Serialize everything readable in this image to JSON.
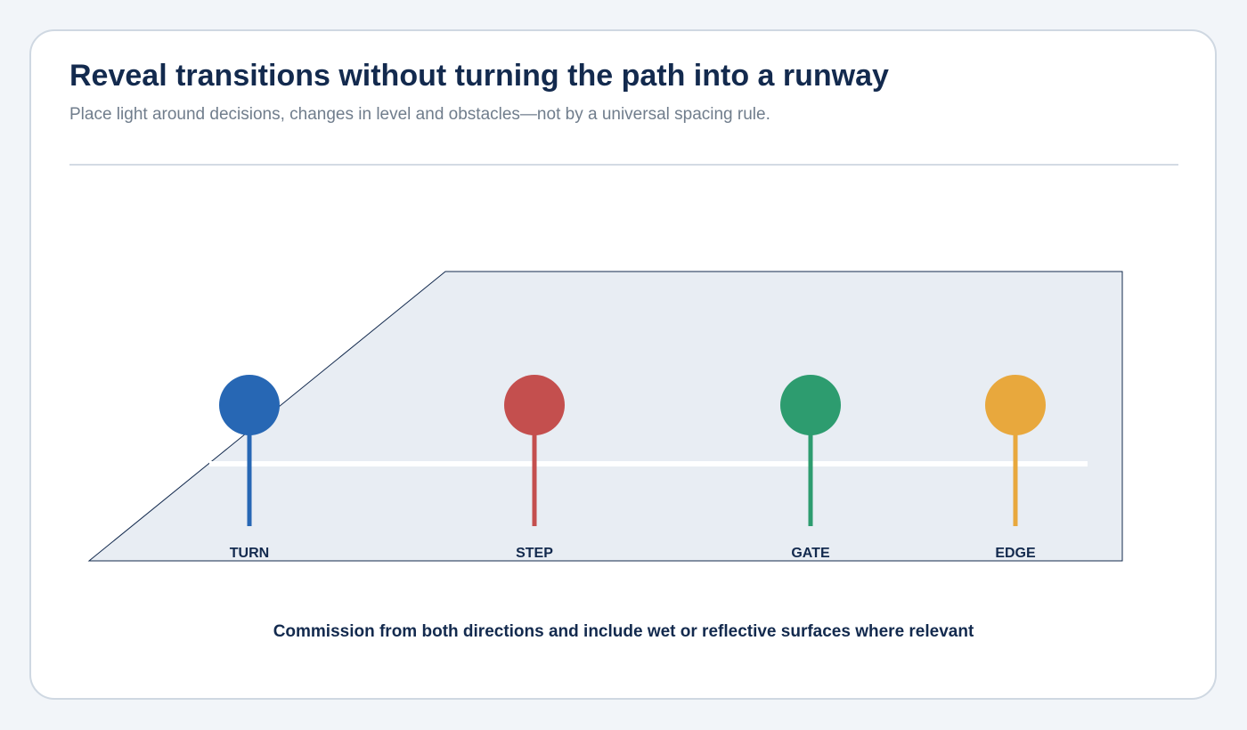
{
  "header": {
    "title": "Reveal transitions without turning the path into a runway",
    "subtitle": "Place light around decisions, changes in level and obstacles—not by a universal spacing rule."
  },
  "diagram": {
    "markers": [
      {
        "label": "TURN",
        "color": "#2767b4"
      },
      {
        "label": "STEP",
        "color": "#c44f4e"
      },
      {
        "label": "GATE",
        "color": "#2d9c6f"
      },
      {
        "label": "EDGE",
        "color": "#e8a83d"
      }
    ],
    "colors": {
      "path_fill": "#e8edf3",
      "path_stroke": "#132a4e",
      "path_line": "#ffffff"
    }
  },
  "footer": {
    "note": "Commission from both directions and include wet or reflective surfaces where relevant"
  }
}
